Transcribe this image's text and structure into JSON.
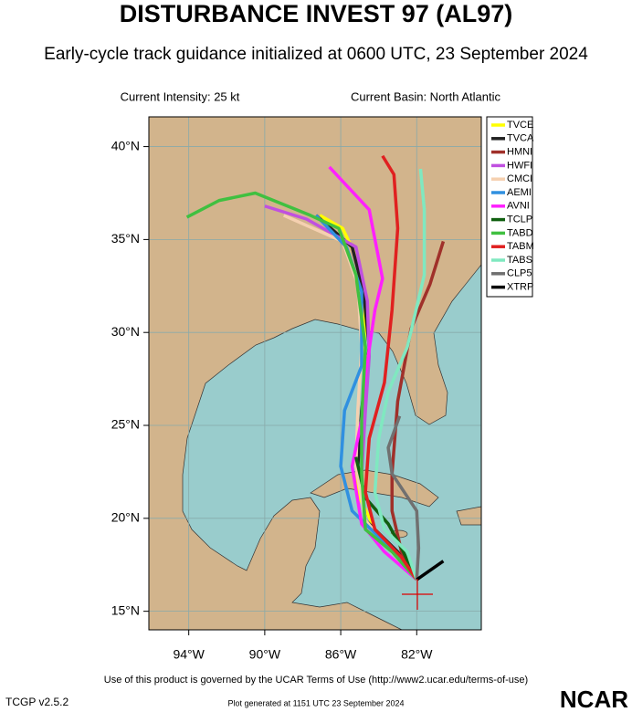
{
  "chart_data": {
    "type": "track",
    "title": "DISTURBANCE INVEST 97 (AL97)",
    "subtitle": "Early-cycle track guidance initialized at 0600 UTC, 23 September 2024",
    "intensity": "Current Intensity: 25 kt",
    "basin": "Current Basin: North Atlantic",
    "terms": "Use of this product is governed by the UCAR Terms of Use (http://www2.ucar.edu/terms-of-use)",
    "version": "TCGP v2.5.2",
    "generated": "Plot generated at 1151 UTC  23 September 2024",
    "logo": "NCAR",
    "xlim": [
      -96.1,
      -78.6
    ],
    "ylim": [
      14.0,
      41.6
    ],
    "xticks": [
      {
        "value": -94,
        "label": "94°W"
      },
      {
        "value": -90,
        "label": "90°W"
      },
      {
        "value": -86,
        "label": "86°W"
      },
      {
        "value": -82,
        "label": "82°W"
      }
    ],
    "yticks": [
      {
        "value": 15,
        "label": "15°N"
      },
      {
        "value": 20,
        "label": "20°N"
      },
      {
        "value": 25,
        "label": "25°N"
      },
      {
        "value": 30,
        "label": "30°N"
      },
      {
        "value": 35,
        "label": "35°N"
      },
      {
        "value": 40,
        "label": "40°N"
      }
    ],
    "grid": true,
    "series": [
      {
        "name": "TVCE",
        "color": "#ffff00",
        "x": [
          -82.0,
          -82.8,
          -84.2,
          -85.0,
          -85.2,
          -84.9,
          -84.7,
          -84.8,
          -85.2,
          -85.9,
          -87.1
        ],
        "values": [
          16.7,
          17.9,
          19.4,
          21.1,
          23.1,
          25.3,
          28.2,
          31.7,
          34.1,
          35.6,
          36.3
        ]
      },
      {
        "name": "TVCA",
        "color": "#222222",
        "x": [
          -82.0,
          -83.0,
          -84.7,
          -85.1,
          -84.9,
          -84.5,
          -84.8,
          -85.4,
          -87.3
        ],
        "values": [
          16.7,
          18.2,
          19.9,
          22.8,
          25.8,
          29.2,
          32.2,
          34.6,
          36.3
        ]
      },
      {
        "name": "HMNI",
        "color": "#a0302a",
        "x": [
          -82.0,
          -82.8,
          -83.3,
          -83.3,
          -83.0,
          -82.3,
          -81.3,
          -80.6
        ],
        "values": [
          16.7,
          18.2,
          20.4,
          22.4,
          26.3,
          30.2,
          32.6,
          34.9
        ]
      },
      {
        "name": "HWFI",
        "color": "#c050e0",
        "x": [
          -82.0,
          -83.3,
          -84.7,
          -84.9,
          -84.7,
          -84.5,
          -84.6,
          -85.2,
          -87.8,
          -90.0
        ],
        "values": [
          16.7,
          18.4,
          19.7,
          22.4,
          25.8,
          28.7,
          31.7,
          34.6,
          36.1,
          36.8
        ]
      },
      {
        "name": "CMCI",
        "color": "#f5d0b0",
        "x": [
          -82.0,
          -83.5,
          -84.7,
          -85.2,
          -85.1,
          -84.9,
          -85.1,
          -85.9,
          -89.0
        ],
        "values": [
          16.7,
          18.4,
          19.9,
          22.8,
          25.8,
          29.2,
          32.6,
          34.9,
          36.3
        ]
      },
      {
        "name": "AEMI",
        "color": "#3090e0",
        "x": [
          -82.0,
          -83.7,
          -85.4,
          -86.0,
          -85.8,
          -84.9,
          -84.9,
          -85.7,
          -87.3
        ],
        "values": [
          16.7,
          18.7,
          20.4,
          22.8,
          25.8,
          28.2,
          32.2,
          34.6,
          36.3
        ]
      },
      {
        "name": "AVNI",
        "color": "#ff20ff",
        "x": [
          -82.0,
          -83.7,
          -84.9,
          -85.4,
          -84.9,
          -84.7,
          -84.2,
          -83.8,
          -84.5,
          -86.6
        ],
        "values": [
          16.7,
          18.2,
          19.7,
          22.8,
          25.3,
          27.7,
          31.2,
          32.9,
          36.6,
          38.9
        ]
      },
      {
        "name": "TCLP",
        "color": "#106010",
        "x": [
          -82.0,
          -82.8,
          -83.5,
          -84.7,
          -85.2
        ],
        "values": [
          16.7,
          18.4,
          19.7,
          21.1,
          23.3
        ]
      },
      {
        "name": "TABD",
        "color": "#40c040",
        "x": [
          -82.0,
          -83.3,
          -84.7,
          -84.9,
          -84.9,
          -84.7,
          -85.2,
          -86.1,
          -87.6,
          -90.5,
          -92.4,
          -94.1
        ],
        "values": [
          16.7,
          18.2,
          19.4,
          22.4,
          25.3,
          29.2,
          33.1,
          35.6,
          36.3,
          37.5,
          37.1,
          36.2
        ]
      },
      {
        "name": "TABM",
        "color": "#e02020",
        "x": [
          -82.0,
          -82.8,
          -84.2,
          -84.7,
          -84.5,
          -83.7,
          -83.3,
          -83.0,
          -83.2,
          -83.8
        ],
        "values": [
          16.7,
          17.9,
          19.4,
          21.4,
          24.3,
          27.3,
          31.2,
          35.6,
          38.5,
          39.5
        ]
      },
      {
        "name": "TABS",
        "color": "#80e8c0",
        "x": [
          -82.0,
          -82.5,
          -83.7,
          -84.2,
          -84.0,
          -83.5,
          -82.5,
          -81.6,
          -81.6,
          -81.8
        ],
        "values": [
          16.7,
          18.2,
          19.4,
          21.4,
          24.3,
          26.8,
          29.2,
          33.1,
          36.6,
          38.8
        ]
      },
      {
        "name": "CLP5",
        "color": "#707070",
        "x": [
          -82.0,
          -81.9,
          -82.0,
          -83.3,
          -83.5,
          -82.9
        ],
        "values": [
          16.7,
          18.4,
          20.4,
          22.4,
          23.8,
          25.5
        ]
      },
      {
        "name": "XTRP",
        "color": "#000000",
        "x": [
          -82.0,
          -80.6
        ],
        "values": [
          16.7,
          17.7
        ]
      }
    ]
  }
}
